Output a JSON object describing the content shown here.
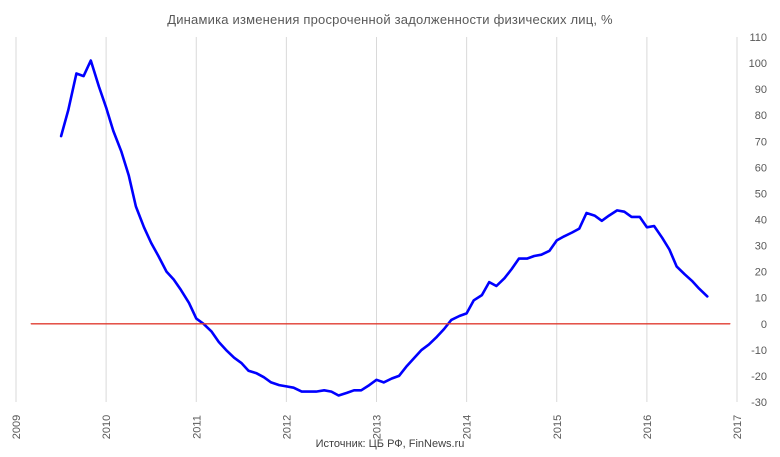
{
  "chart_data": {
    "type": "line",
    "title": "Динамика изменения просроченной задолженности физических лиц, %",
    "source": "Источник: ЦБ РФ, FinNews.ru",
    "xlabel": "",
    "ylabel": "",
    "xlim": [
      2009,
      2017
    ],
    "ylim": [
      -30,
      110
    ],
    "grid": true,
    "legend": "none",
    "x_ticks": [
      "2009",
      "2010",
      "2011",
      "2012",
      "2013",
      "2014",
      "2015",
      "2016",
      "2017"
    ],
    "y_ticks": [
      "110",
      "100",
      "90",
      "80",
      "70",
      "60",
      "50",
      "40",
      "30",
      "20",
      "10",
      "0",
      "-10",
      "-20",
      "-30"
    ],
    "series": [
      {
        "color": "#0000ff",
        "points": [
          [
            2009.5,
            72
          ],
          [
            2009.58,
            82
          ],
          [
            2009.67,
            96
          ],
          [
            2009.75,
            95
          ],
          [
            2009.83,
            101
          ],
          [
            2009.92,
            91
          ],
          [
            2010.0,
            83
          ],
          [
            2010.08,
            74
          ],
          [
            2010.17,
            66
          ],
          [
            2010.25,
            57
          ],
          [
            2010.33,
            45
          ],
          [
            2010.42,
            37
          ],
          [
            2010.5,
            31
          ],
          [
            2010.58,
            26
          ],
          [
            2010.67,
            20
          ],
          [
            2010.75,
            17
          ],
          [
            2010.83,
            13
          ],
          [
            2010.92,
            8
          ],
          [
            2011.0,
            2
          ],
          [
            2011.08,
            0
          ],
          [
            2011.17,
            -3
          ],
          [
            2011.25,
            -7
          ],
          [
            2011.33,
            -10
          ],
          [
            2011.42,
            -13
          ],
          [
            2011.5,
            -15
          ],
          [
            2011.58,
            -18
          ],
          [
            2011.67,
            -19
          ],
          [
            2011.75,
            -20.5
          ],
          [
            2011.83,
            -22.5
          ],
          [
            2011.92,
            -23.5
          ],
          [
            2012.0,
            -24
          ],
          [
            2012.08,
            -24.5
          ],
          [
            2012.17,
            -26
          ],
          [
            2012.25,
            -26
          ],
          [
            2012.33,
            -26
          ],
          [
            2012.42,
            -25.5
          ],
          [
            2012.5,
            -26
          ],
          [
            2012.58,
            -27.5
          ],
          [
            2012.67,
            -26.5
          ],
          [
            2012.75,
            -25.5
          ],
          [
            2012.83,
            -25.5
          ],
          [
            2012.92,
            -23.5
          ],
          [
            2013.0,
            -21.5
          ],
          [
            2013.08,
            -22.5
          ],
          [
            2013.17,
            -21
          ],
          [
            2013.25,
            -20
          ],
          [
            2013.33,
            -16.5
          ],
          [
            2013.42,
            -13
          ],
          [
            2013.5,
            -10
          ],
          [
            2013.58,
            -8
          ],
          [
            2013.67,
            -5
          ],
          [
            2013.75,
            -2
          ],
          [
            2013.83,
            1.5
          ],
          [
            2013.92,
            3
          ],
          [
            2014.0,
            4
          ],
          [
            2014.08,
            9
          ],
          [
            2014.17,
            11
          ],
          [
            2014.25,
            16
          ],
          [
            2014.33,
            14.5
          ],
          [
            2014.42,
            17.5
          ],
          [
            2014.5,
            21
          ],
          [
            2014.58,
            25
          ],
          [
            2014.67,
            25
          ],
          [
            2014.75,
            26
          ],
          [
            2014.83,
            26.5
          ],
          [
            2014.92,
            28
          ],
          [
            2015.0,
            32
          ],
          [
            2015.08,
            33.5
          ],
          [
            2015.17,
            35
          ],
          [
            2015.25,
            36.5
          ],
          [
            2015.33,
            42.5
          ],
          [
            2015.42,
            41.5
          ],
          [
            2015.5,
            39.5
          ],
          [
            2015.58,
            41.5
          ],
          [
            2015.67,
            43.5
          ],
          [
            2015.75,
            43
          ],
          [
            2015.83,
            41
          ],
          [
            2015.92,
            41
          ],
          [
            2016.0,
            37
          ],
          [
            2016.08,
            37.5
          ],
          [
            2016.17,
            33
          ],
          [
            2016.25,
            28.5
          ],
          [
            2016.33,
            22
          ],
          [
            2016.42,
            19
          ],
          [
            2016.5,
            16.5
          ],
          [
            2016.58,
            13.5
          ],
          [
            2016.67,
            10.5
          ]
        ]
      },
      {
        "color": "#e03c31",
        "points": [
          [
            2009.17,
            0
          ],
          [
            2016.92,
            0
          ]
        ]
      }
    ]
  }
}
